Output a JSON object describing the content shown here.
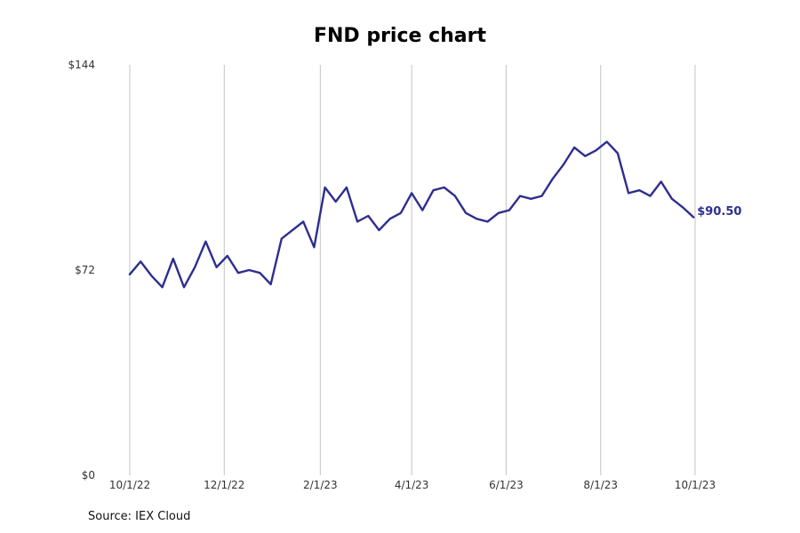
{
  "chart_data": {
    "type": "line",
    "title": "FND price chart",
    "source": "Source: IEX Cloud",
    "xlabel": "",
    "ylabel": "",
    "ylim": [
      0,
      144
    ],
    "y_ticks": [
      0,
      72,
      144
    ],
    "y_tick_labels": [
      "$0",
      "$72",
      "$144"
    ],
    "x_ticks": [
      "2022-10-01",
      "2022-12-01",
      "2023-02-01",
      "2023-04-01",
      "2023-06-01",
      "2023-08-01",
      "2023-10-01"
    ],
    "x_tick_labels": [
      "10/1/22",
      "12/1/22",
      "2/1/23",
      "4/1/23",
      "6/1/23",
      "8/1/23",
      "10/1/23"
    ],
    "grid": "vertical",
    "line_color": "#2e2e8f",
    "last_value_label": "$90.50",
    "series": [
      {
        "x": [
          "2022-10-01",
          "2022-10-08",
          "2022-10-15",
          "2022-10-22",
          "2022-10-29",
          "2022-11-05",
          "2022-11-12",
          "2022-11-19",
          "2022-11-26",
          "2022-12-03",
          "2022-12-10",
          "2022-12-17",
          "2022-12-24",
          "2022-12-31",
          "2023-01-07",
          "2023-01-14",
          "2023-01-21",
          "2023-01-28",
          "2023-02-04",
          "2023-02-11",
          "2023-02-18",
          "2023-02-25",
          "2023-03-04",
          "2023-03-11",
          "2023-03-18",
          "2023-03-25",
          "2023-04-01",
          "2023-04-08",
          "2023-04-15",
          "2023-04-22",
          "2023-04-29",
          "2023-05-06",
          "2023-05-13",
          "2023-05-20",
          "2023-05-27",
          "2023-06-03",
          "2023-06-10",
          "2023-06-17",
          "2023-06-24",
          "2023-07-01",
          "2023-07-08",
          "2023-07-15",
          "2023-07-22",
          "2023-07-29",
          "2023-08-05",
          "2023-08-12",
          "2023-08-19",
          "2023-08-26",
          "2023-09-02",
          "2023-09-09",
          "2023-09-16",
          "2023-09-23",
          "2023-09-30"
        ],
        "y": [
          70.5,
          75,
          70,
          66,
          76,
          66,
          73,
          82,
          73,
          77,
          71,
          72,
          71,
          67,
          83,
          86,
          89,
          80,
          101,
          96,
          101,
          89,
          91,
          86,
          90,
          92,
          99,
          93,
          100,
          101,
          98,
          92,
          90,
          89,
          92,
          93,
          98,
          97,
          98,
          104,
          109,
          115,
          112,
          114,
          117,
          113,
          99,
          100,
          98,
          103,
          97,
          94,
          90.5
        ]
      }
    ]
  }
}
